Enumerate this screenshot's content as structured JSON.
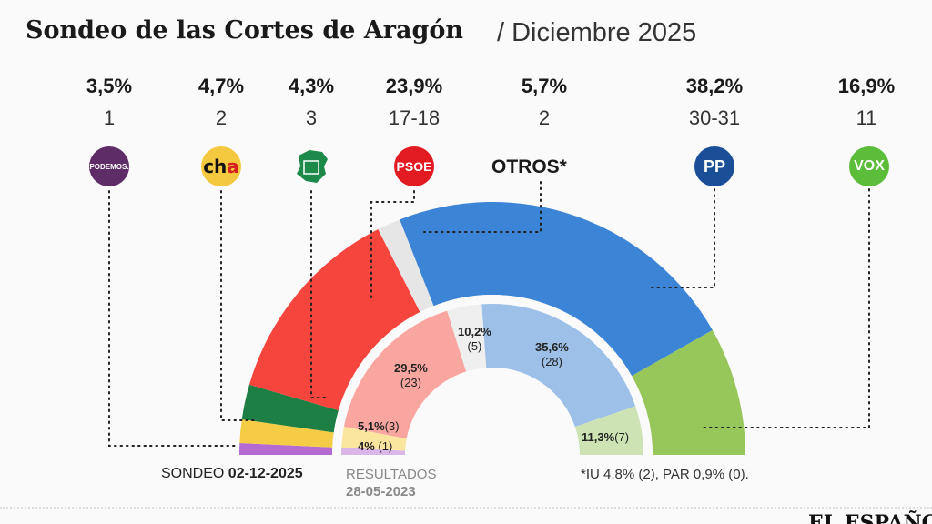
{
  "title": "Sondeo de las Cortes de Aragón",
  "subtitle": "/ Diciembre 2025",
  "otros_label": "OTROS*",
  "footnote": "*IU 4,8% (2), PAR 0,9% (0).",
  "sondeo_label": "SONDEO",
  "sondeo_date": "02-12-2025",
  "resultados_label": "RESULTADOS",
  "resultados_date": "28-05-2023",
  "brand": "EL ESPAÑOL",
  "chart_data": {
    "type": "pie",
    "subtype": "double-ring hemicycle",
    "parties": [
      {
        "name": "Podemos",
        "logo": "PODEMOS.",
        "pct": "3,5%",
        "seats": "1",
        "seats_value": 1,
        "color": "#b36bd1",
        "prev_pct": "4%",
        "prev_seats": "(1)",
        "prev_seats_value": 1,
        "prev_color": "#d9b5e8"
      },
      {
        "name": "CHA",
        "logo": "cha",
        "pct": "4,7%",
        "seats": "2",
        "seats_value": 2,
        "color": "#f5cc45",
        "prev_pct": "5,1%",
        "prev_seats": "(3)",
        "prev_seats_value": 3,
        "prev_color": "#fbe6a0"
      },
      {
        "name": "Teruel Existe",
        "logo": "",
        "pct": "4,3%",
        "seats": "3",
        "seats_value": 3,
        "color": "#1e7f45",
        "prev_pct": "",
        "prev_seats": "",
        "prev_seats_value": 0,
        "prev_color": "#1e7f45"
      },
      {
        "name": "PSOE",
        "logo": "PSOE",
        "pct": "23,9%",
        "seats": "17-18",
        "seats_value": 17.5,
        "color": "#f5453d",
        "prev_pct": "29,5%",
        "prev_seats": "(23)",
        "prev_seats_value": 23,
        "prev_color": "#f9a6a0"
      },
      {
        "name": "Otros",
        "logo": "",
        "pct": "5,7%",
        "seats": "2",
        "seats_value": 2,
        "color": "#e6e6e6",
        "prev_pct": "10,2%",
        "prev_seats": "(5)",
        "prev_seats_value": 5,
        "prev_color": "#efefef"
      },
      {
        "name": "PP",
        "logo": "PP",
        "pct": "38,2%",
        "seats": "30-31",
        "seats_value": 30.5,
        "color": "#3c84d6",
        "prev_pct": "35,6%",
        "prev_seats": "(28)",
        "prev_seats_value": 28,
        "prev_color": "#9cc0e8"
      },
      {
        "name": "Vox",
        "logo": "VOX",
        "pct": "16,9%",
        "seats": "11",
        "seats_value": 11,
        "color": "#97c65a",
        "prev_pct": "11,3%",
        "prev_seats": "(7)",
        "prev_seats_value": 7,
        "prev_color": "#cde3b4"
      }
    ]
  }
}
